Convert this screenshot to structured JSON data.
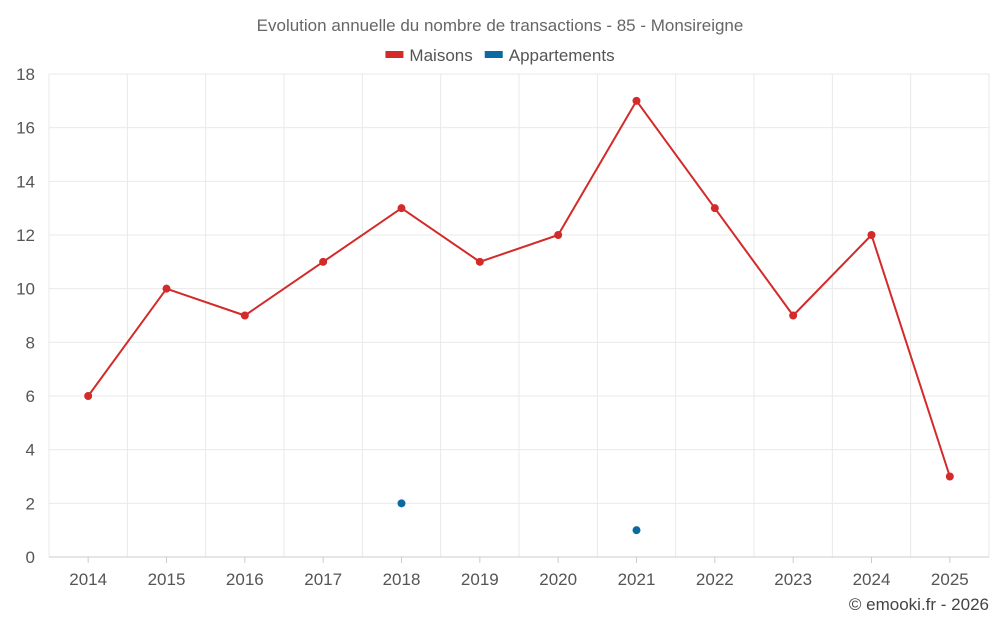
{
  "chart_data": {
    "type": "line",
    "title": "Evolution annuelle du nombre de transactions - 85 - Monsireigne",
    "categories": [
      "2014",
      "2015",
      "2016",
      "2017",
      "2018",
      "2019",
      "2020",
      "2021",
      "2022",
      "2023",
      "2024",
      "2025"
    ],
    "ylim": [
      0,
      18
    ],
    "yticks": [
      0,
      2,
      4,
      6,
      8,
      10,
      12,
      14,
      16,
      18
    ],
    "grid": true,
    "legend_position": "top-center",
    "series": [
      {
        "name": "Maisons",
        "color": "#d32a2a",
        "values": [
          6,
          10,
          9,
          11,
          13,
          11,
          12,
          17,
          13,
          9,
          12,
          3
        ]
      },
      {
        "name": "Appartements",
        "color": "#0b6aa2",
        "values": [
          null,
          null,
          null,
          null,
          2,
          null,
          null,
          1,
          null,
          null,
          null,
          null
        ]
      }
    ]
  },
  "footer": "© emooki.fr - 2026"
}
